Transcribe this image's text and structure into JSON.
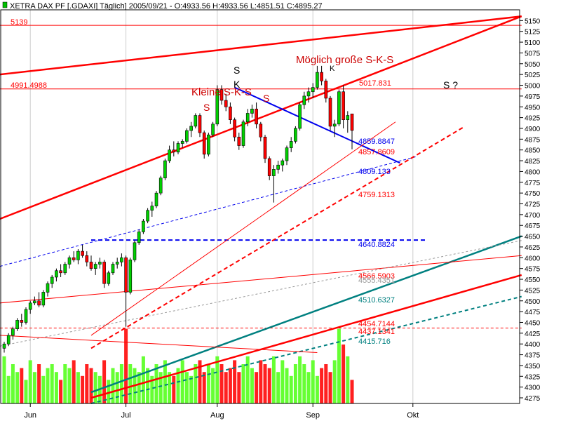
{
  "header": {
    "text": "XETRA DAX PF [.GDAXI]  Täglich] 2005/09/21 - O:4933.56 H:4933.56 L:4851.51 C:4895.27"
  },
  "chart_data": {
    "type": "candlestick",
    "ylim": [
      4262,
      5175
    ],
    "ticks": [
      5150,
      5125,
      5100,
      5075,
      5050,
      5025,
      5000,
      4975,
      4950,
      4925,
      4900,
      4875,
      4850,
      4825,
      4800,
      4775,
      4750,
      4725,
      4700,
      4675,
      4650,
      4625,
      4600,
      4575,
      4550,
      4525,
      4500,
      4475,
      4450,
      4425,
      4400,
      4375,
      4350,
      4325,
      4300,
      4275
    ],
    "months": [
      {
        "label": "Jun",
        "index": 6
      },
      {
        "label": "Jul",
        "index": 28
      },
      {
        "label": "Aug",
        "index": 49
      },
      {
        "label": "Sep",
        "index": 71
      },
      {
        "label": "Okt",
        "index": 94
      }
    ],
    "ohlc": [
      [
        4390,
        4405,
        4380,
        4400
      ],
      [
        4400,
        4425,
        4395,
        4420
      ],
      [
        4420,
        4440,
        4410,
        4435
      ],
      [
        4435,
        4460,
        4430,
        4455
      ],
      [
        4455,
        4470,
        4440,
        4450
      ],
      [
        4450,
        4485,
        4445,
        4480
      ],
      [
        4480,
        4500,
        4470,
        4495
      ],
      [
        4495,
        4510,
        4490,
        4500
      ],
      [
        4500,
        4520,
        4485,
        4490
      ],
      [
        4490,
        4525,
        4485,
        4520
      ],
      [
        4520,
        4545,
        4510,
        4540
      ],
      [
        4540,
        4560,
        4530,
        4555
      ],
      [
        4555,
        4575,
        4545,
        4570
      ],
      [
        4570,
        4585,
        4555,
        4565
      ],
      [
        4565,
        4590,
        4560,
        4585
      ],
      [
        4585,
        4605,
        4575,
        4600
      ],
      [
        4600,
        4615,
        4590,
        4595
      ],
      [
        4595,
        4620,
        4585,
        4615
      ],
      [
        4615,
        4630,
        4600,
        4605
      ],
      [
        4605,
        4615,
        4580,
        4590
      ],
      [
        4590,
        4605,
        4570,
        4575
      ],
      [
        4575,
        4590,
        4560,
        4585
      ],
      [
        4585,
        4600,
        4575,
        4590
      ],
      [
        4590,
        4595,
        4530,
        4540
      ],
      [
        4540,
        4570,
        4535,
        4565
      ],
      [
        4565,
        4590,
        4560,
        4585
      ],
      [
        4585,
        4600,
        4575,
        4590
      ],
      [
        4590,
        4610,
        4580,
        4600
      ],
      [
        4600,
        4605,
        4440,
        4520
      ],
      [
        4520,
        4600,
        4515,
        4595
      ],
      [
        4595,
        4640,
        4590,
        4635
      ],
      [
        4635,
        4665,
        4630,
        4660
      ],
      [
        4660,
        4690,
        4655,
        4685
      ],
      [
        4685,
        4715,
        4680,
        4710
      ],
      [
        4710,
        4730,
        4695,
        4720
      ],
      [
        4720,
        4755,
        4715,
        4750
      ],
      [
        4750,
        4790,
        4745,
        4785
      ],
      [
        4785,
        4830,
        4780,
        4825
      ],
      [
        4825,
        4860,
        4820,
        4850
      ],
      [
        4850,
        4870,
        4835,
        4845
      ],
      [
        4845,
        4870,
        4840,
        4865
      ],
      [
        4865,
        4875,
        4855,
        4870
      ],
      [
        4870,
        4900,
        4865,
        4895
      ],
      [
        4895,
        4915,
        4880,
        4905
      ],
      [
        4905,
        4935,
        4900,
        4930
      ],
      [
        4930,
        4935,
        4880,
        4890
      ],
      [
        4890,
        4895,
        4830,
        4840
      ],
      [
        4840,
        4890,
        4835,
        4885
      ],
      [
        4885,
        4915,
        4880,
        4910
      ],
      [
        4910,
        5000,
        4905,
        4990
      ],
      [
        4990,
        5000,
        4955,
        4965
      ],
      [
        4965,
        4980,
        4940,
        4950
      ],
      [
        4950,
        4960,
        4910,
        4920
      ],
      [
        4920,
        4925,
        4870,
        4880
      ],
      [
        4880,
        4890,
        4850,
        4860
      ],
      [
        4860,
        4920,
        4855,
        4915
      ],
      [
        4915,
        4945,
        4905,
        4935
      ],
      [
        4935,
        4955,
        4925,
        4945
      ],
      [
        4945,
        4960,
        4900,
        4910
      ],
      [
        4910,
        4915,
        4870,
        4880
      ],
      [
        4880,
        4885,
        4820,
        4830
      ],
      [
        4830,
        4835,
        4780,
        4790
      ],
      [
        4790,
        4815,
        4728,
        4805
      ],
      [
        4805,
        4825,
        4795,
        4815
      ],
      [
        4815,
        4830,
        4800,
        4825
      ],
      [
        4825,
        4860,
        4815,
        4855
      ],
      [
        4855,
        4880,
        4845,
        4870
      ],
      [
        4870,
        4905,
        4865,
        4900
      ],
      [
        4900,
        4960,
        4895,
        4955
      ],
      [
        4955,
        4985,
        4945,
        4975
      ],
      [
        4975,
        4995,
        4960,
        4985
      ],
      [
        4985,
        5005,
        4970,
        4995
      ],
      [
        4995,
        5045,
        4990,
        5030
      ],
      [
        5030,
        5045,
        5000,
        5010
      ],
      [
        5010,
        5015,
        4960,
        4970
      ],
      [
        4970,
        4975,
        4895,
        4905
      ],
      [
        4905,
        4920,
        4880,
        4910
      ],
      [
        4910,
        4990,
        4905,
        4985
      ],
      [
        4985,
        5000,
        4900,
        4920
      ],
      [
        4920,
        4940,
        4890,
        4930
      ],
      [
        4933.56,
        4933.56,
        4851.51,
        4895.27
      ]
    ],
    "volume": [
      0.6,
      0.35,
      0.5,
      0.4,
      0.45,
      0.3,
      0.55,
      0.4,
      0.5,
      0.35,
      0.45,
      0.5,
      0.4,
      0.3,
      0.5,
      0.45,
      0.55,
      0.4,
      0.35,
      0.5,
      0.45,
      0.4,
      0.35,
      0.55,
      0.3,
      0.45,
      0.4,
      0.5,
      0.95,
      0.5,
      0.45,
      0.4,
      0.6,
      0.45,
      0.35,
      0.5,
      0.4,
      0.55,
      0.4,
      0.35,
      0.45,
      0.55,
      0.4,
      0.35,
      0.5,
      0.55,
      0.4,
      0.5,
      0.45,
      0.6,
      0.5,
      0.4,
      0.45,
      0.55,
      0.4,
      0.5,
      0.6,
      0.45,
      0.4,
      0.55,
      0.5,
      0.45,
      0.6,
      0.4,
      0.55,
      0.45,
      0.35,
      0.5,
      0.6,
      0.5,
      0.4,
      0.55,
      0.35,
      0.45,
      0.5,
      0.4,
      0.55,
      0.95,
      0.75,
      0.6,
      0.3
    ],
    "colors": {
      "up": "#00d000",
      "down": "#ff0000",
      "volume_up": "#66ff33",
      "volume_down": "#ff2020",
      "red": "#ff0000",
      "blue": "#0000ee",
      "teal": "#008080",
      "grey": "#999999"
    },
    "labels": {
      "level_5139": "5139",
      "level_4991": "4991.4988",
      "v5017": "5017.831",
      "v4859": "4859.8847",
      "v4857": "4857.8609",
      "v4809": "4809.133",
      "v4759": "4759.1313",
      "v4640": "4640.8824",
      "v4566": "4566.5903",
      "v4555": "4555.4351",
      "v4510": "4510.6327",
      "v4454": "4454.7144",
      "v4437": "4437.1341",
      "v4415": "4415.716"
    },
    "annotations": {
      "moeglich": "Möglich große S-K-S",
      "kleine": "Kleine S-K-S",
      "s1": "S",
      "s_top": "S",
      "k1": "K",
      "s2": "S",
      "k2": "K",
      "s_q": "S  ?"
    }
  }
}
